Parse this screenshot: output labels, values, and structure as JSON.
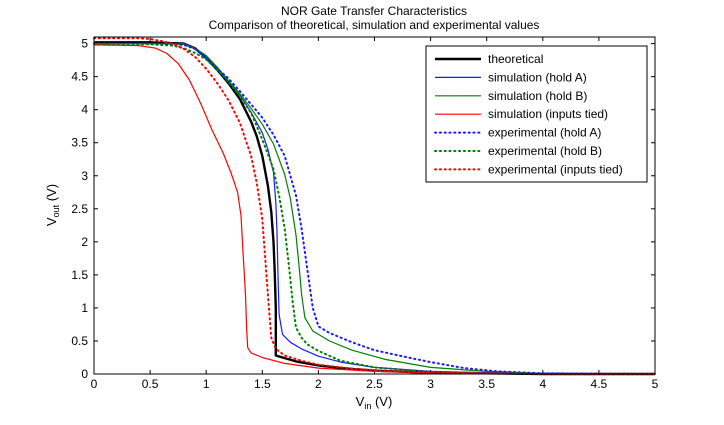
{
  "chart_data": {
    "type": "line",
    "title": "NOR Gate Transfer Characteristics",
    "subtitle": "Comparison of theoretical, simulation and experimental values",
    "xlabel": {
      "main": "V",
      "sub": "in",
      "unit": " (V)"
    },
    "ylabel": {
      "main": "V",
      "sub": "out",
      "unit": " (V)"
    },
    "xlim": [
      0,
      5
    ],
    "ylim": [
      0,
      5.1
    ],
    "xticks": [
      "0",
      "0.5",
      "1",
      "1.5",
      "2",
      "2.5",
      "3",
      "3.5",
      "4",
      "4.5",
      "5"
    ],
    "yticks": [
      "0",
      "0.5",
      "1",
      "1.5",
      "2",
      "2.5",
      "3",
      "3.5",
      "4",
      "4.5",
      "5"
    ],
    "grid": false,
    "legend_position": "top-right",
    "series": [
      {
        "name": "theoretical",
        "color": "#000000",
        "style": "solid",
        "width": 2.4,
        "x": [
          0,
          0.5,
          0.8,
          0.9,
          1.0,
          1.1,
          1.2,
          1.3,
          1.4,
          1.45,
          1.5,
          1.55,
          1.58,
          1.6,
          1.61,
          1.62,
          1.62,
          1.7,
          1.8,
          2.0,
          2.2,
          2.5,
          3.0,
          3.5,
          4.0,
          5.0
        ],
        "y": [
          5.02,
          5.02,
          5.0,
          4.93,
          4.78,
          4.6,
          4.4,
          4.16,
          3.82,
          3.6,
          3.3,
          2.85,
          2.45,
          2.0,
          1.6,
          1.0,
          0.28,
          0.24,
          0.19,
          0.13,
          0.09,
          0.05,
          0.02,
          0.01,
          0.0,
          0.0
        ]
      },
      {
        "name": "simulation (hold A)",
        "color": "#1a1aff",
        "style": "solid",
        "width": 1.2,
        "x": [
          0,
          0.5,
          0.8,
          0.9,
          1.0,
          1.1,
          1.2,
          1.3,
          1.4,
          1.5,
          1.55,
          1.6,
          1.62,
          1.63,
          1.64,
          1.65,
          1.68,
          1.75,
          1.85,
          2.0,
          2.2,
          2.5,
          3.0,
          3.5,
          4.0,
          5.0
        ],
        "y": [
          5.0,
          5.0,
          5.0,
          4.93,
          4.78,
          4.6,
          4.42,
          4.22,
          3.96,
          3.65,
          3.4,
          3.05,
          2.6,
          2.2,
          1.5,
          0.9,
          0.6,
          0.48,
          0.38,
          0.27,
          0.18,
          0.1,
          0.04,
          0.02,
          0.01,
          0.0
        ]
      },
      {
        "name": "simulation (hold B)",
        "color": "#008000",
        "style": "solid",
        "width": 1.2,
        "x": [
          0,
          0.5,
          0.8,
          0.9,
          1.0,
          1.1,
          1.2,
          1.3,
          1.4,
          1.5,
          1.6,
          1.7,
          1.75,
          1.8,
          1.83,
          1.85,
          1.88,
          1.95,
          2.1,
          2.3,
          2.6,
          3.0,
          3.5,
          4.0,
          5.0
        ],
        "y": [
          5.0,
          5.0,
          4.99,
          4.93,
          4.82,
          4.64,
          4.44,
          4.24,
          4.02,
          3.78,
          3.48,
          3.02,
          2.65,
          2.1,
          1.6,
          1.2,
          0.85,
          0.65,
          0.5,
          0.36,
          0.22,
          0.1,
          0.04,
          0.01,
          0.0
        ]
      },
      {
        "name": "simulation (inputs tied)",
        "color": "#ff0000",
        "style": "solid",
        "width": 1.2,
        "x": [
          0,
          0.4,
          0.55,
          0.65,
          0.75,
          0.85,
          0.95,
          1.05,
          1.15,
          1.22,
          1.28,
          1.31,
          1.33,
          1.35,
          1.36,
          1.37,
          1.4,
          1.5,
          1.7,
          2.0,
          2.5,
          3.0,
          4.0,
          5.0
        ],
        "y": [
          4.98,
          4.97,
          4.93,
          4.85,
          4.7,
          4.45,
          4.1,
          3.7,
          3.35,
          3.05,
          2.75,
          2.4,
          1.8,
          1.2,
          0.7,
          0.4,
          0.32,
          0.25,
          0.16,
          0.09,
          0.04,
          0.02,
          0.0,
          0.0
        ]
      },
      {
        "name": "experimental (hold A)",
        "color": "#1a1aff",
        "style": "dotted",
        "width": 2.4,
        "x": [
          0,
          0.5,
          0.8,
          0.9,
          1.0,
          1.1,
          1.2,
          1.3,
          1.4,
          1.5,
          1.6,
          1.7,
          1.8,
          1.85,
          1.9,
          1.95,
          2.0,
          2.1,
          2.3,
          2.5,
          2.8,
          3.0,
          3.3,
          3.6,
          4.0,
          5.0
        ],
        "y": [
          5.0,
          5.0,
          4.98,
          4.92,
          4.78,
          4.62,
          4.47,
          4.28,
          4.08,
          3.88,
          3.62,
          3.3,
          2.7,
          2.2,
          1.6,
          1.0,
          0.72,
          0.62,
          0.48,
          0.36,
          0.25,
          0.18,
          0.09,
          0.04,
          0.01,
          0.0
        ]
      },
      {
        "name": "experimental (hold B)",
        "color": "#008000",
        "style": "dotted",
        "width": 2.4,
        "x": [
          0,
          0.5,
          0.7,
          0.8,
          0.9,
          1.0,
          1.1,
          1.2,
          1.3,
          1.4,
          1.5,
          1.6,
          1.65,
          1.7,
          1.74,
          1.77,
          1.8,
          1.85,
          1.9,
          2.0,
          2.2,
          2.5,
          3.0,
          3.5,
          4.0,
          5.0
        ],
        "y": [
          5.0,
          4.99,
          4.97,
          4.93,
          4.86,
          4.76,
          4.6,
          4.42,
          4.2,
          3.95,
          3.55,
          3.1,
          2.7,
          2.2,
          1.6,
          1.1,
          0.7,
          0.55,
          0.45,
          0.35,
          0.2,
          0.1,
          0.03,
          0.01,
          0.0,
          0.0
        ]
      },
      {
        "name": "experimental (inputs tied)",
        "color": "#ff0000",
        "style": "dotted",
        "width": 2.4,
        "x": [
          0,
          0.4,
          0.5,
          0.6,
          0.7,
          0.8,
          0.9,
          1.0,
          1.1,
          1.2,
          1.3,
          1.4,
          1.45,
          1.5,
          1.52,
          1.55,
          1.58,
          1.62,
          1.7,
          1.85,
          2.0,
          2.3,
          2.8,
          3.5,
          4.0,
          5.0
        ],
        "y": [
          5.08,
          5.08,
          5.07,
          5.04,
          5.0,
          4.92,
          4.8,
          4.62,
          4.4,
          4.14,
          3.8,
          3.3,
          2.9,
          2.35,
          1.9,
          1.2,
          0.55,
          0.38,
          0.28,
          0.2,
          0.14,
          0.08,
          0.03,
          0.01,
          0.0,
          0.0
        ]
      }
    ]
  }
}
